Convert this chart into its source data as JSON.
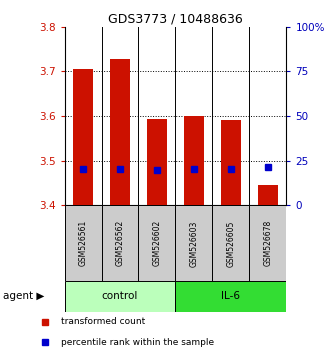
{
  "title": "GDS3773 / 10488636",
  "samples": [
    "GSM526561",
    "GSM526562",
    "GSM526602",
    "GSM526603",
    "GSM526605",
    "GSM526678"
  ],
  "groups": [
    "control",
    "control",
    "control",
    "IL-6",
    "IL-6",
    "IL-6"
  ],
  "transformed_counts": [
    3.705,
    3.728,
    3.593,
    3.6,
    3.592,
    3.445
  ],
  "bar_base": 3.4,
  "percentile_rank_positions": [
    3.482,
    3.482,
    3.479,
    3.482,
    3.482,
    3.486
  ],
  "ylim": [
    3.4,
    3.8
  ],
  "yticks": [
    3.4,
    3.5,
    3.6,
    3.7,
    3.8
  ],
  "right_yticks": [
    0,
    25,
    50,
    75,
    100
  ],
  "right_yticklabels": [
    "0",
    "25",
    "50",
    "75",
    "100%"
  ],
  "bar_color": "#cc1100",
  "percentile_color": "#0000cc",
  "control_bg": "#bbffbb",
  "il6_bg": "#33dd33",
  "sample_bg": "#cccccc",
  "ylabel_left_color": "#cc1100",
  "ylabel_right_color": "#0000bb",
  "bar_width": 0.55,
  "figsize": [
    3.31,
    3.54
  ],
  "dpi": 100
}
